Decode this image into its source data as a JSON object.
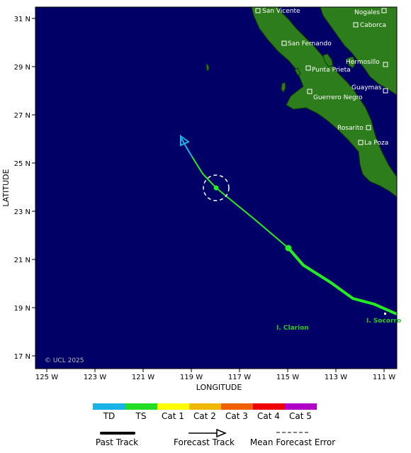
{
  "map": {
    "xlabel": "LONGITUDE",
    "ylabel": "LATITUDE",
    "copyright": "© UCL 2025",
    "colors": {
      "ocean": "#000066",
      "land": "#2e7d1c",
      "land_edge": "#0a3a06"
    },
    "lon_ticks": [
      "125 W",
      "123 W",
      "121 W",
      "119 W",
      "117 W",
      "115 W",
      "113 W",
      "111 W"
    ],
    "lat_ticks": [
      "31 N",
      "29 N",
      "27 N",
      "25 N",
      "23 N",
      "21 N",
      "19 N",
      "17 N"
    ],
    "cities": [
      "San Vicente",
      "Nogales",
      "Caborca",
      "San Fernando",
      "Hermosillo",
      "Punta Prieta",
      "Guaymas",
      "Guerrero Negro",
      "Rosarito",
      "La Poza"
    ],
    "islands": [
      "I. Clarion",
      "I. Socorro"
    ]
  },
  "legend": {
    "categories": [
      {
        "label": "TD",
        "color": "#1ab3e6"
      },
      {
        "label": "TS",
        "color": "#22dd22"
      },
      {
        "label": "Cat 1",
        "color": "#ffff00"
      },
      {
        "label": "Cat 2",
        "color": "#f0b800"
      },
      {
        "label": "Cat 3",
        "color": "#f06000"
      },
      {
        "label": "Cat 4",
        "color": "#ee0000"
      },
      {
        "label": "Cat 5",
        "color": "#b000c8"
      }
    ],
    "past_track": "Past Track",
    "forecast_track": "Forecast Track",
    "mean_error": "Mean Forecast Error"
  }
}
